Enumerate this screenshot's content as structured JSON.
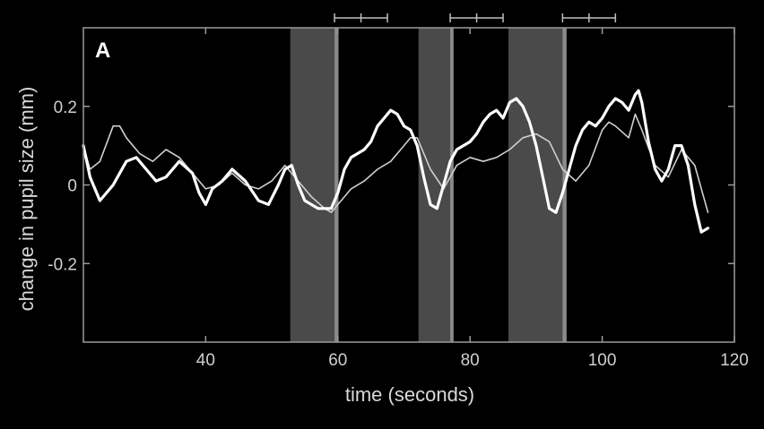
{
  "chart_data": {
    "type": "line",
    "panel_label": "A",
    "xlabel": "time (seconds)",
    "ylabel": "change in pupil size (mm)",
    "xlim": [
      21.5,
      120
    ],
    "ylim": [
      -0.4,
      0.4
    ],
    "xticks": [
      40,
      60,
      80,
      100,
      120
    ],
    "yticks": [
      0.2,
      0,
      -0.2
    ],
    "ytick_labels": [
      "0.2",
      "0",
      "-0.2"
    ],
    "grid": false,
    "shaded_intervals": [
      {
        "from": 52.8,
        "to": 60.1,
        "edge": 59.5
      },
      {
        "from": 72.2,
        "to": 77.5,
        "edge": 77.0
      },
      {
        "from": 85.8,
        "to": 94.6,
        "edge": 94.0
      }
    ],
    "range_bars": [
      {
        "start": 59.5,
        "mid": 63.5,
        "end": 67.5
      },
      {
        "start": 77.0,
        "mid": 81.0,
        "end": 85.0
      },
      {
        "start": 94.0,
        "mid": 98.0,
        "end": 102.0
      }
    ],
    "series": [
      {
        "style": "thick",
        "color": "#ffffff",
        "x": [
          21.5,
          22.5,
          24,
          26,
          28,
          29.5,
          31,
          32.5,
          34,
          36,
          38,
          39,
          40,
          41,
          42.5,
          44,
          46,
          48,
          49.5,
          51,
          52,
          53,
          54,
          55,
          56,
          57,
          58,
          59,
          60,
          61,
          62,
          63,
          64,
          65,
          66,
          67,
          68,
          69,
          70,
          71,
          72,
          73,
          74,
          75,
          76,
          77,
          78,
          79,
          80,
          81,
          82,
          83,
          84,
          85,
          86,
          87,
          88,
          89,
          90,
          91,
          92,
          93,
          94,
          95,
          96,
          97,
          98,
          99,
          100,
          101,
          102,
          103,
          104,
          105,
          105.5,
          106,
          107,
          108,
          109,
          110,
          111,
          112,
          113,
          114,
          115,
          116
        ],
        "y": [
          0.1,
          0.02,
          -0.04,
          0.0,
          0.06,
          0.07,
          0.04,
          0.01,
          0.02,
          0.06,
          0.03,
          -0.02,
          -0.05,
          -0.01,
          0.01,
          0.04,
          0.01,
          -0.04,
          -0.05,
          0.0,
          0.04,
          0.05,
          0.0,
          -0.04,
          -0.05,
          -0.06,
          -0.06,
          -0.06,
          -0.02,
          0.04,
          0.07,
          0.08,
          0.09,
          0.11,
          0.15,
          0.17,
          0.19,
          0.18,
          0.15,
          0.14,
          0.1,
          0.02,
          -0.05,
          -0.06,
          0.0,
          0.06,
          0.09,
          0.1,
          0.11,
          0.13,
          0.16,
          0.18,
          0.19,
          0.17,
          0.21,
          0.22,
          0.2,
          0.16,
          0.1,
          0.02,
          -0.06,
          -0.07,
          -0.02,
          0.04,
          0.1,
          0.14,
          0.16,
          0.15,
          0.17,
          0.2,
          0.22,
          0.21,
          0.19,
          0.23,
          0.24,
          0.21,
          0.11,
          0.04,
          0.01,
          0.04,
          0.1,
          0.1,
          0.05,
          -0.05,
          -0.12,
          -0.11
        ]
      },
      {
        "style": "thin",
        "color": "#cfcfcf",
        "x": [
          21.5,
          22.5,
          24,
          26,
          27,
          28,
          30,
          32,
          34,
          36,
          38,
          40,
          42,
          44,
          46,
          48,
          50,
          52,
          54,
          56,
          58,
          59,
          60,
          62,
          64,
          66,
          68,
          70,
          71,
          72,
          74,
          76,
          78,
          80,
          82,
          84,
          86,
          88,
          90,
          92,
          94,
          96,
          98,
          100,
          101,
          102,
          104,
          105,
          106,
          108,
          110,
          112,
          114,
          116
        ],
        "y": [
          0.1,
          0.04,
          0.06,
          0.15,
          0.15,
          0.12,
          0.08,
          0.06,
          0.09,
          0.07,
          0.03,
          -0.01,
          0.0,
          0.03,
          0.0,
          -0.01,
          0.01,
          0.05,
          0.01,
          -0.03,
          -0.06,
          -0.07,
          -0.05,
          -0.01,
          0.01,
          0.04,
          0.06,
          0.1,
          0.12,
          0.12,
          0.04,
          -0.01,
          0.05,
          0.07,
          0.06,
          0.07,
          0.09,
          0.12,
          0.13,
          0.11,
          0.04,
          0.01,
          0.05,
          0.14,
          0.16,
          0.15,
          0.12,
          0.18,
          0.14,
          0.05,
          0.02,
          0.09,
          0.05,
          -0.07
        ]
      }
    ]
  }
}
